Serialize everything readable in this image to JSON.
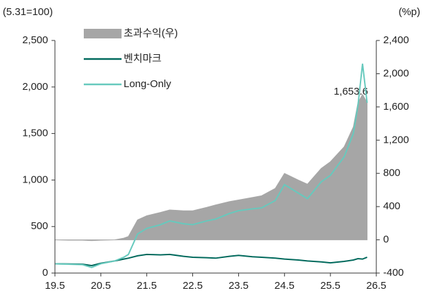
{
  "chart_data": {
    "type": "line",
    "ylabel": "(5.31=100)",
    "y2label": "(%p)",
    "x": [
      19.5,
      19.8,
      20.1,
      20.3,
      20.5,
      20.8,
      21.0,
      21.1,
      21.3,
      21.5,
      21.8,
      22.0,
      22.3,
      22.5,
      22.8,
      23.0,
      23.3,
      23.5,
      23.8,
      24.0,
      24.3,
      24.5,
      24.8,
      25.0,
      25.3,
      25.5,
      25.8,
      26.0,
      26.1,
      26.2,
      26.3
    ],
    "xlim": [
      19.5,
      26.5
    ],
    "xticks": [
      19.5,
      20.5,
      21.5,
      22.5,
      23.5,
      24.5,
      25.5,
      26.5
    ],
    "ylim": [
      0,
      2500
    ],
    "yticks": [
      0,
      500,
      {
        "value": 1000,
        "label": "1,000"
      },
      {
        "value": 1500,
        "label": "1,500"
      },
      {
        "value": 2000,
        "label": "2,000"
      },
      {
        "value": 2500,
        "label": "2,500"
      }
    ],
    "y2lim": [
      -400,
      2400
    ],
    "y2ticks": [
      -400,
      0,
      400,
      800,
      {
        "value": 1200,
        "label": "1,200"
      },
      {
        "value": 1600,
        "label": "1,600"
      },
      {
        "value": 2000,
        "label": "2,000"
      },
      {
        "value": 2400,
        "label": "2,400"
      }
    ],
    "legend": "upper left",
    "series": [
      {
        "name": "초과수익(우)",
        "color": "#a6a6a6",
        "type": "area",
        "axis": "y2",
        "values": [
          0,
          -5,
          -5,
          -10,
          -5,
          0,
          20,
          40,
          240,
          290,
          330,
          360,
          350,
          350,
          390,
          420,
          460,
          480,
          510,
          530,
          620,
          800,
          720,
          670,
          860,
          940,
          1120,
          1360,
          1650,
          1750,
          1653.6
        ]
      },
      {
        "name": "벤치마크",
        "color": "#00695c",
        "type": "line",
        "values": [
          100,
          98,
          95,
          80,
          105,
          130,
          150,
          160,
          185,
          200,
          195,
          200,
          180,
          170,
          165,
          160,
          180,
          190,
          175,
          170,
          160,
          150,
          140,
          130,
          120,
          110,
          125,
          140,
          155,
          150,
          170
        ]
      },
      {
        "name": "Long-Only",
        "color": "#66c9bd",
        "type": "line",
        "values": [
          100,
          95,
          90,
          60,
          100,
          130,
          170,
          200,
          420,
          480,
          520,
          560,
          530,
          520,
          560,
          580,
          640,
          670,
          690,
          700,
          780,
          950,
          860,
          800,
          980,
          1050,
          1250,
          1500,
          1800,
          2250,
          1830
        ]
      }
    ],
    "annotations": [
      {
        "text": "1,653.6"
      }
    ]
  }
}
